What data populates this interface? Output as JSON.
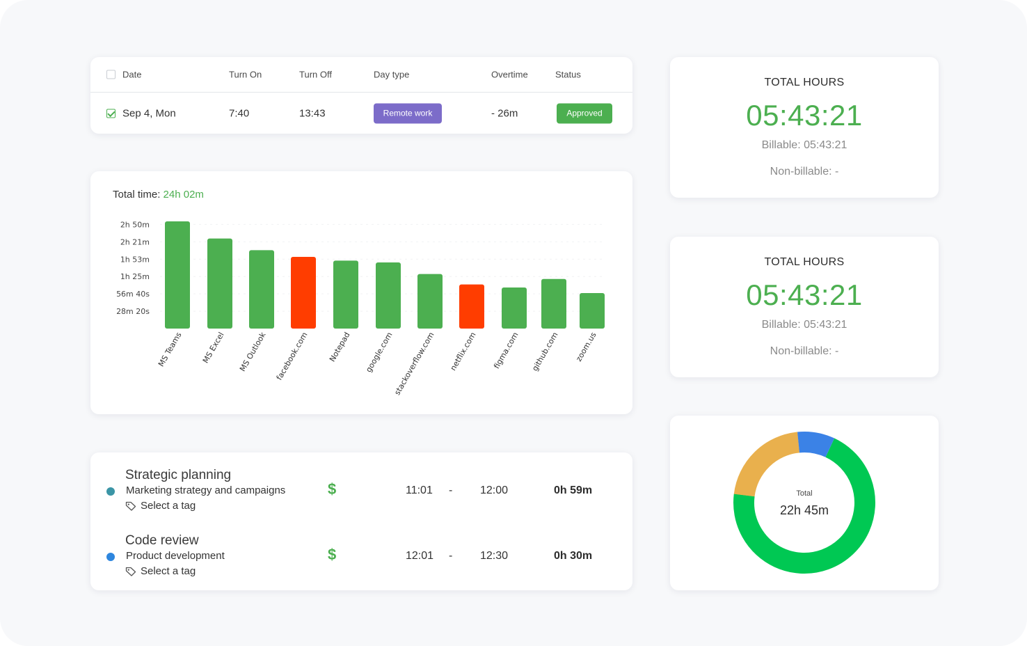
{
  "attendance": {
    "headers": [
      "Date",
      "Turn On",
      "Turn Off",
      "Day type",
      "Overtime",
      "Status"
    ],
    "row": {
      "date": "Sep 4, Mon",
      "turn_on": "7:40",
      "turn_off": "13:43",
      "day_type": "Remote work",
      "overtime": "- 26m",
      "status": "Approved"
    },
    "colors": {
      "day_type": "#7c6cc9",
      "status": "#4caf50",
      "date_link": "#2e86de"
    }
  },
  "hours_cards": [
    {
      "title": "TOTAL HOURS",
      "value": "05:43:21",
      "billable": "Billable: 05:43:21",
      "non_billable": "Non-billable: -"
    },
    {
      "title": "TOTAL HOURS",
      "value": "05:43:21",
      "billable": "Billable: 05:43:21",
      "non_billable": "Non-billable: -"
    }
  ],
  "total_time": {
    "label": "Total time:",
    "value": "24h 02m"
  },
  "chart_data": {
    "type": "bar",
    "categories": [
      "MS Teams",
      "MS Excel",
      "MS Outlook",
      "facebook.com",
      "Notepad",
      "google.com",
      "stackoverflow.com",
      "netflix.com",
      "figma.com",
      "github.com",
      "zoom.us"
    ],
    "values_minutes": [
      175,
      147,
      128,
      117,
      111,
      108,
      89,
      72,
      67,
      81,
      58
    ],
    "bar_colors": [
      "#4caf50",
      "#4caf50",
      "#4caf50",
      "#ff3d00",
      "#4caf50",
      "#4caf50",
      "#4caf50",
      "#ff3d00",
      "#4caf50",
      "#4caf50",
      "#4caf50"
    ],
    "y_ticks": [
      {
        "label": "28m 20s",
        "minutes": 28.33
      },
      {
        "label": "56m 40s",
        "minutes": 56.67
      },
      {
        "label": "1h 25m",
        "minutes": 85
      },
      {
        "label": "1h 53m",
        "minutes": 113.33
      },
      {
        "label": "2h 21m",
        "minutes": 141.67
      },
      {
        "label": "2h 50m",
        "minutes": 170
      }
    ],
    "ylim_minutes": [
      0,
      175
    ]
  },
  "tasks": [
    {
      "title": "Strategic planning",
      "subtitle": "Marketing strategy and campaigns",
      "tag": "Select a tag",
      "dollar": "$",
      "start": "11:01",
      "dash": "-",
      "end": "12:00",
      "duration": "0h 59m",
      "dot_color": "#3b95a6"
    },
    {
      "title": "Code review",
      "subtitle": "Product development",
      "tag": "Select a tag",
      "dollar": "$",
      "start": "12:01",
      "dash": "-",
      "end": "12:30",
      "duration": "0h 30m",
      "dot_color": "#2e86de"
    }
  ],
  "donut": {
    "label": "Total",
    "value": "22h 45m",
    "segments": [
      {
        "color": "#00c853",
        "fraction": 0.7
      },
      {
        "color": "#e9b04d",
        "fraction": 0.215
      },
      {
        "color": "#3b82e6",
        "fraction": 0.085
      }
    ]
  }
}
